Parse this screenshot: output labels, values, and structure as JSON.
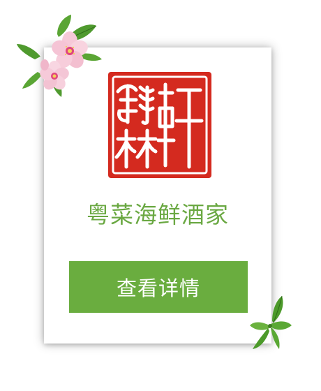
{
  "seal": {
    "characters": [
      "翰",
      "林",
      "轩"
    ],
    "color": "#d42a1f",
    "description_icon": "seal-stamp-icon"
  },
  "restaurant": {
    "name": "粤菜海鲜酒家"
  },
  "actions": {
    "details_label": "查看详情"
  },
  "colors": {
    "accent_green": "#6aad3f",
    "title_green": "#6aa842",
    "seal_red": "#d42a1f"
  },
  "decorations": {
    "top_left": "peach-blossom-icon",
    "bottom_right": "green-leaves-icon"
  }
}
